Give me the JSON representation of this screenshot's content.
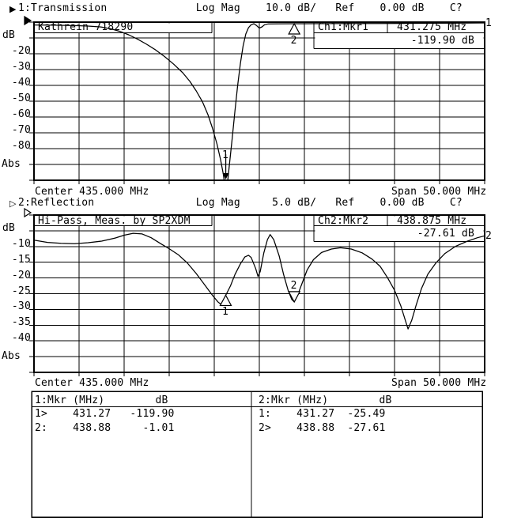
{
  "chart_data": [
    {
      "type": "line",
      "channel": 1,
      "header_icon": "▶",
      "header_text": "1:Transmission              Log Mag    10.0 dB/   Ref    0.00 dB    C?",
      "trace_label": "Kathrein 718290",
      "readout": {
        "channel": "Ch1:Mkr1",
        "freq": "431.275 MHz",
        "value": "-119.90 dB"
      },
      "footer_center": "Center 435.000 MHz",
      "footer_span": "Span 50.000 MHz",
      "trace_number": "1",
      "center_mhz": 435.0,
      "span_mhz": 50.0,
      "db_per_div": 10.0,
      "ref_db": 0.0,
      "xrange": [
        410,
        460
      ],
      "yrange": [
        0,
        -100
      ],
      "yticks": [
        {
          "label": "dB",
          "db": -10,
          "left": 3
        },
        {
          "label": "-20",
          "db": -20
        },
        {
          "label": "-30",
          "db": -30
        },
        {
          "label": "-40",
          "db": -40
        },
        {
          "label": "-50",
          "db": -50
        },
        {
          "label": "-60",
          "db": -60
        },
        {
          "label": "-70",
          "db": -70
        },
        {
          "label": "-80",
          "db": -80
        },
        {
          "label": "Abs",
          "db": -90,
          "left": 2,
          "dy": 3
        }
      ],
      "markers": [
        {
          "id": "1",
          "mhz": 431.275,
          "db": -119.9,
          "style": "below-screen"
        },
        {
          "id": "2",
          "mhz": 438.875,
          "db": -1.01,
          "style": "inactive"
        }
      ],
      "series": [
        {
          "name": "transmission-trace",
          "points": [
            [
              410,
              -1.8
            ],
            [
              411.5,
              -1.9
            ],
            [
              413,
              -2
            ],
            [
              414.5,
              -2.2
            ],
            [
              416,
              -2.5
            ],
            [
              417.5,
              -3.1
            ],
            [
              418.5,
              -4.2
            ],
            [
              419.5,
              -5.8
            ],
            [
              420.5,
              -8
            ],
            [
              421.5,
              -10.8
            ],
            [
              422.5,
              -14
            ],
            [
              423.5,
              -17.6
            ],
            [
              424.5,
              -21.8
            ],
            [
              425.5,
              -26.6
            ],
            [
              426.5,
              -32
            ],
            [
              427.3,
              -37.5
            ],
            [
              428,
              -43.5
            ],
            [
              428.7,
              -50.5
            ],
            [
              429.3,
              -58.5
            ],
            [
              429.8,
              -67
            ],
            [
              430.3,
              -77
            ],
            [
              430.7,
              -87
            ],
            [
              431,
              -96
            ],
            [
              431.1,
              -101
            ],
            [
              431.5,
              -101
            ],
            [
              431.7,
              -89
            ],
            [
              432,
              -73
            ],
            [
              432.3,
              -56
            ],
            [
              432.6,
              -40
            ],
            [
              432.9,
              -26
            ],
            [
              433.2,
              -15
            ],
            [
              433.5,
              -7.5
            ],
            [
              433.8,
              -3.5
            ],
            [
              434.1,
              -1.6
            ],
            [
              434.4,
              -1
            ],
            [
              434.7,
              -2.2
            ],
            [
              435,
              -3.8
            ],
            [
              435.3,
              -3
            ],
            [
              435.6,
              -1.6
            ],
            [
              436,
              -1.1
            ],
            [
              437,
              -1.05
            ],
            [
              438.87,
              -1.01
            ],
            [
              440,
              -1
            ],
            [
              442,
              -0.95
            ],
            [
              445,
              -0.9
            ],
            [
              448,
              -0.85
            ],
            [
              451,
              -0.8
            ],
            [
              454,
              -0.7
            ],
            [
              457,
              -0.6
            ],
            [
              460,
              -0.5
            ]
          ]
        }
      ]
    },
    {
      "type": "line",
      "channel": 2,
      "header_icon": "▷",
      "header_text": "2:Reflection                Log Mag     5.0 dB/   Ref    0.00 dB    C?",
      "trace_label": "Hi-Pass, Meas. by SP2XDM",
      "readout": {
        "channel": "Ch2:Mkr2",
        "freq": "438.875 MHz",
        "value": "-27.61 dB"
      },
      "footer_center": "Center 435.000 MHz",
      "footer_span": "Span 50.000 MHz",
      "trace_number": "2",
      "center_mhz": 435.0,
      "span_mhz": 50.0,
      "db_per_div": 5.0,
      "ref_db": 0.0,
      "xrange": [
        410,
        460
      ],
      "yrange": [
        0,
        -50
      ],
      "yticks": [
        {
          "label": "dB",
          "db": -5,
          "left": 3
        },
        {
          "label": "-10",
          "db": -10
        },
        {
          "label": "-15",
          "db": -15
        },
        {
          "label": "-20",
          "db": -20
        },
        {
          "label": "-25",
          "db": -25
        },
        {
          "label": "-30",
          "db": -30
        },
        {
          "label": "-35",
          "db": -35
        },
        {
          "label": "-40",
          "db": -40
        },
        {
          "label": "Abs",
          "db": -45,
          "left": 2,
          "dy": 3
        }
      ],
      "markers": [
        {
          "id": "1",
          "mhz": 431.27,
          "db": -25.49,
          "style": "inactive"
        },
        {
          "id": "2",
          "mhz": 438.875,
          "db": -27.61,
          "style": "active"
        }
      ],
      "series": [
        {
          "name": "reflection-trace",
          "points": [
            [
              410,
              -8
            ],
            [
              411.5,
              -8.7
            ],
            [
              413,
              -9
            ],
            [
              414.5,
              -9.1
            ],
            [
              416,
              -8.8
            ],
            [
              417.5,
              -8.3
            ],
            [
              419,
              -7.3
            ],
            [
              420,
              -6.4
            ],
            [
              421,
              -5.8
            ],
            [
              422,
              -6
            ],
            [
              423,
              -7.2
            ],
            [
              424,
              -9
            ],
            [
              425,
              -10.7
            ],
            [
              426,
              -12.6
            ],
            [
              427,
              -15.2
            ],
            [
              428,
              -18.6
            ],
            [
              429,
              -22.4
            ],
            [
              429.8,
              -25.5
            ],
            [
              430.4,
              -27.6
            ],
            [
              430.7,
              -28.3
            ],
            [
              431,
              -27.8
            ],
            [
              431.27,
              -25.49
            ],
            [
              431.8,
              -22.5
            ],
            [
              432.3,
              -18.9
            ],
            [
              432.9,
              -15.5
            ],
            [
              433.4,
              -13.3
            ],
            [
              433.8,
              -12.8
            ],
            [
              434.1,
              -13.5
            ],
            [
              434.6,
              -17
            ],
            [
              434.85,
              -19.5
            ],
            [
              435.1,
              -18
            ],
            [
              435.5,
              -12
            ],
            [
              435.9,
              -7.8
            ],
            [
              436.2,
              -6.2
            ],
            [
              436.6,
              -7.8
            ],
            [
              437.2,
              -13
            ],
            [
              437.7,
              -19
            ],
            [
              438.2,
              -24
            ],
            [
              438.6,
              -26.8
            ],
            [
              438.875,
              -27.61
            ],
            [
              439.2,
              -25.8
            ],
            [
              439.7,
              -22
            ],
            [
              440.3,
              -17.5
            ],
            [
              441,
              -14.2
            ],
            [
              441.9,
              -11.9
            ],
            [
              443,
              -10.8
            ],
            [
              444,
              -10.4
            ],
            [
              445.2,
              -10.8
            ],
            [
              446.4,
              -12
            ],
            [
              447.5,
              -14
            ],
            [
              448.4,
              -16.3
            ],
            [
              449.2,
              -19.8
            ],
            [
              450,
              -23.9
            ],
            [
              450.7,
              -28.9
            ],
            [
              451.2,
              -33.5
            ],
            [
              451.5,
              -36.2
            ],
            [
              451.9,
              -33.5
            ],
            [
              452.4,
              -28.6
            ],
            [
              453,
              -23.3
            ],
            [
              453.7,
              -18.8
            ],
            [
              454.6,
              -15.2
            ],
            [
              455.6,
              -12.2
            ],
            [
              456.8,
              -9.9
            ],
            [
              458.1,
              -8.3
            ],
            [
              459.2,
              -7.2
            ],
            [
              460,
              -6.6
            ]
          ]
        }
      ]
    }
  ],
  "marker_table": {
    "left": {
      "header": "1:Mkr (MHz)        dB",
      "rows": [
        "1>    431.27   -119.90",
        "2:    438.88     -1.01"
      ]
    },
    "right": {
      "header": "2:Mkr (MHz)        dB",
      "rows": [
        "1:    431.27  -25.49",
        "2>    438.88  -27.61"
      ]
    }
  }
}
